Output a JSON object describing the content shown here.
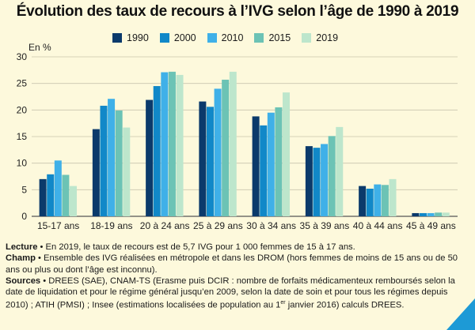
{
  "title": "Évolution des taux de recours à l’IVG selon l’âge de 1990 à 2019",
  "chart_data": {
    "type": "bar",
    "title": "Évolution des taux de recours à l’IVG selon l’âge de 1990 à 2019",
    "ylabel": "En %",
    "xlabel": "",
    "ylim": [
      0,
      30
    ],
    "yticks": [
      0,
      5,
      10,
      15,
      20,
      25,
      30
    ],
    "grid": true,
    "legend_position": "top",
    "categories": [
      "15-17 ans",
      "18-19 ans",
      "20 à 24 ans",
      "25 à 29 ans",
      "30 à 34 ans",
      "35 à 39 ans",
      "40 à 44 ans",
      "45 à 49 ans"
    ],
    "series": [
      {
        "name": "1990",
        "color": "#0b3a6b",
        "values": [
          7.0,
          16.4,
          21.9,
          21.6,
          18.8,
          13.2,
          5.7,
          0.6
        ]
      },
      {
        "name": "2000",
        "color": "#1188c8",
        "values": [
          7.9,
          20.8,
          24.5,
          20.6,
          17.1,
          12.9,
          5.2,
          0.6
        ]
      },
      {
        "name": "2010",
        "color": "#3fb0e8",
        "values": [
          10.5,
          22.1,
          27.1,
          24.0,
          19.5,
          13.6,
          6.0,
          0.6
        ]
      },
      {
        "name": "2015",
        "color": "#6cc3b5",
        "values": [
          7.8,
          19.9,
          27.2,
          25.7,
          20.5,
          15.1,
          5.9,
          0.7
        ]
      },
      {
        "name": "2019",
        "color": "#bde6cc",
        "values": [
          5.7,
          16.7,
          26.6,
          27.2,
          23.3,
          16.8,
          7.0,
          0.7
        ]
      }
    ]
  },
  "notes": {
    "lecture_label": "Lecture",
    "lecture_text": " • En 2019, le taux de recours est de 5,7 IVG pour 1 000 femmes de 15 à 17 ans.",
    "champ_label": "Champ",
    "champ_text": " • Ensemble des IVG réalisées en métropole et dans les DROM (hors femmes de moins de 15 ans ou de 50 ans ou plus ou dont l’âge est inconnu).",
    "sources_label": "Sources",
    "sources_text_1": " • DREES (SAE), CNAM-TS (Erasme puis DCIR : nombre de forfaits médicamenteux remboursés selon la date de liquidation et pour le régime général jusqu’en 2009, selon la date de soin et pour tous les régimes depuis 2010) ; ATIH (PMSI) ; Insee (estimations localisées de population au 1",
    "sources_sup": "er",
    "sources_text_2": " janvier 2016) calculs DREES."
  }
}
